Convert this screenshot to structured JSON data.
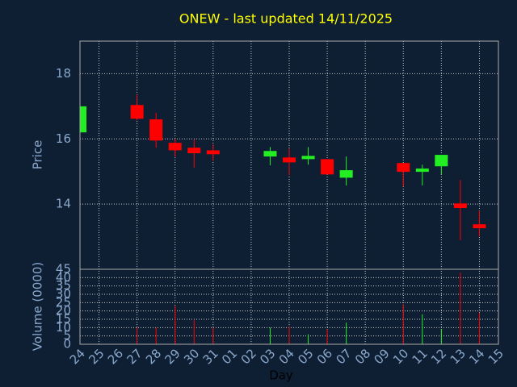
{
  "chart_data": {
    "type": "candlestick",
    "title": "ONEW - last updated 14/11/2025",
    "xlabel": "Day",
    "ylabel": "Price",
    "categories": [
      "24",
      "25",
      "26",
      "27",
      "28",
      "29",
      "30",
      "31",
      "01",
      "02",
      "03",
      "04",
      "05",
      "06",
      "07",
      "08",
      "09",
      "10",
      "11",
      "12",
      "13",
      "14",
      "15"
    ],
    "open": [
      16.2,
      null,
      null,
      17.04,
      16.6,
      15.88,
      15.73,
      15.65,
      null,
      null,
      15.46,
      15.43,
      15.38,
      15.38,
      14.81,
      null,
      null,
      15.26,
      14.99,
      15.16,
      14.02,
      13.38,
      null
    ],
    "high": [
      17.0,
      null,
      null,
      17.36,
      16.8,
      16.0,
      15.98,
      15.83,
      null,
      null,
      15.75,
      15.7,
      15.75,
      15.38,
      15.46,
      null,
      null,
      15.26,
      15.21,
      15.51,
      14.74,
      13.8,
      null
    ],
    "low": [
      16.2,
      null,
      null,
      16.57,
      15.73,
      15.46,
      15.11,
      15.33,
      null,
      null,
      15.19,
      14.89,
      15.21,
      14.91,
      14.57,
      null,
      null,
      14.54,
      14.57,
      14.91,
      12.89,
      13.01,
      null
    ],
    "close": [
      17.0,
      null,
      null,
      16.62,
      15.95,
      15.65,
      15.56,
      15.53,
      null,
      null,
      15.63,
      15.28,
      15.48,
      14.91,
      15.04,
      null,
      null,
      14.99,
      15.09,
      15.51,
      13.88,
      13.26,
      null
    ],
    "ylim": [
      12,
      19
    ],
    "yticks": [
      14,
      16,
      18
    ],
    "up_color": "#22ee22",
    "down_color": "#ff0000",
    "grid": true,
    "volume": {
      "ylabel": "Volume (0000)",
      "values": [
        null,
        null,
        null,
        10,
        10,
        23,
        14.5,
        10,
        null,
        null,
        10,
        10.6,
        6,
        9,
        13,
        null,
        null,
        24,
        18,
        9,
        43,
        19,
        null
      ],
      "ylim": [
        0,
        45
      ],
      "yticks": [
        0,
        5,
        10,
        15,
        20,
        25,
        30,
        35,
        40,
        45
      ]
    }
  }
}
